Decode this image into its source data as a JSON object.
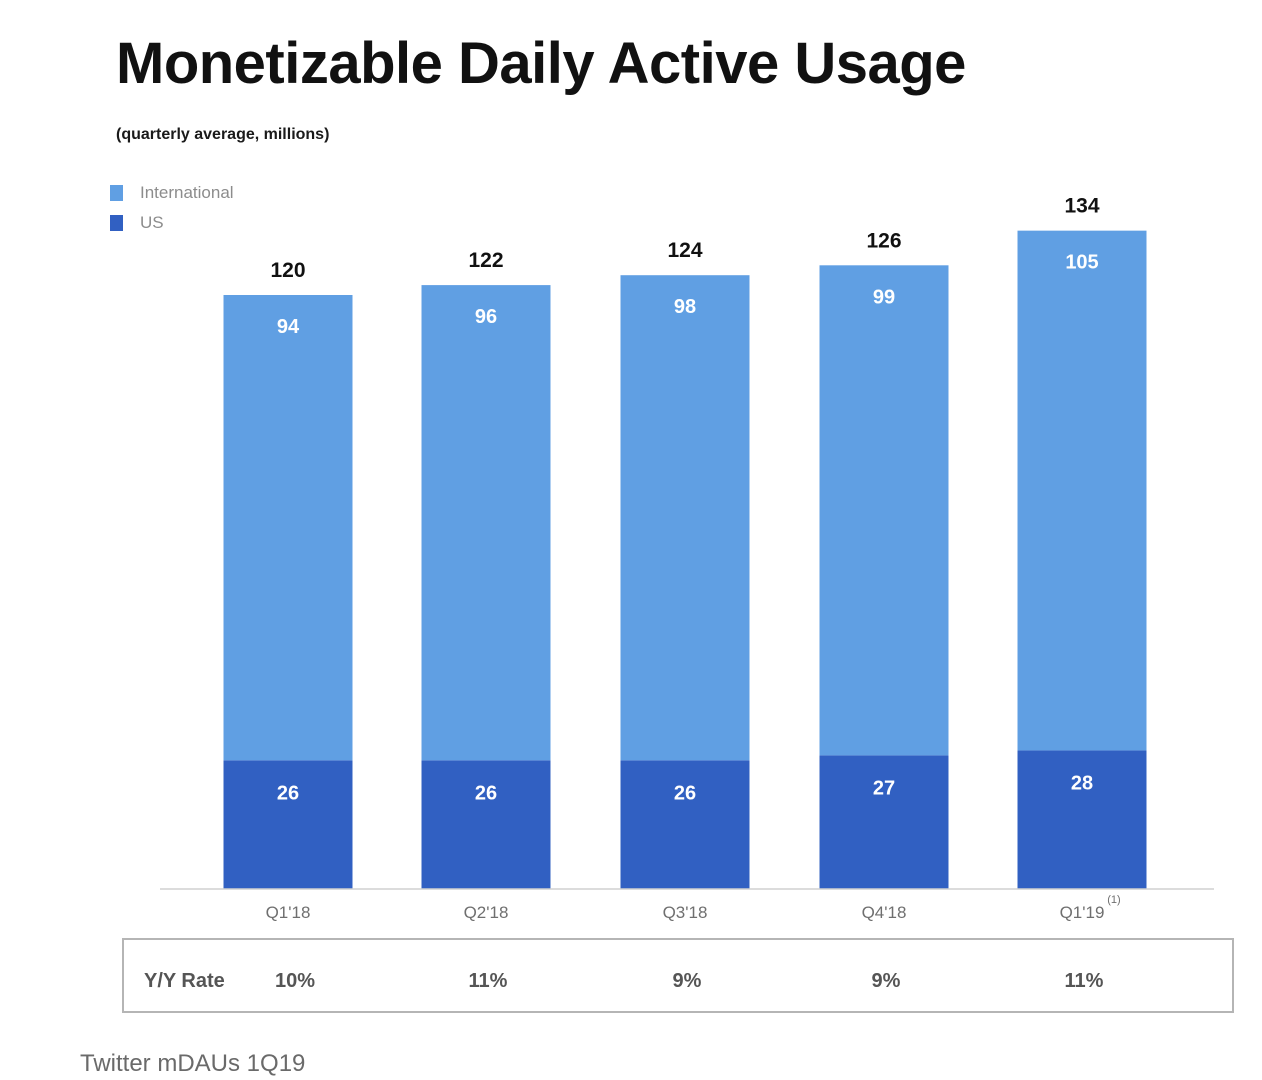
{
  "title": "Monetizable Daily Active Usage",
  "subtitle": "(quarterly average, millions)",
  "caption": "Twitter mDAUs 1Q19",
  "colors": {
    "international": "#609fe3",
    "us": "#3160c2",
    "axis": "#d0d0d0"
  },
  "chart_data": {
    "type": "bar",
    "stacked": true,
    "title": "Monetizable Daily Active Usage",
    "subtitle": "(quarterly average, millions)",
    "categories": [
      "Q1'18",
      "Q2'18",
      "Q3'18",
      "Q4'18",
      "Q1'19"
    ],
    "footnote_marks": [
      "",
      "",
      "",
      "",
      "(1)"
    ],
    "series": [
      {
        "name": "US",
        "values": [
          26,
          26,
          26,
          27,
          28
        ]
      },
      {
        "name": "International",
        "values": [
          94,
          96,
          98,
          99,
          105
        ]
      }
    ],
    "totals": [
      120,
      122,
      124,
      126,
      134
    ],
    "ylim": [
      0,
      134
    ],
    "legend": [
      "International",
      "US"
    ],
    "legend_position": "top-left",
    "grid": false
  },
  "yy_table": {
    "label": "Y/Y Rate",
    "values": [
      "10%",
      "11%",
      "9%",
      "9%",
      "11%"
    ]
  }
}
